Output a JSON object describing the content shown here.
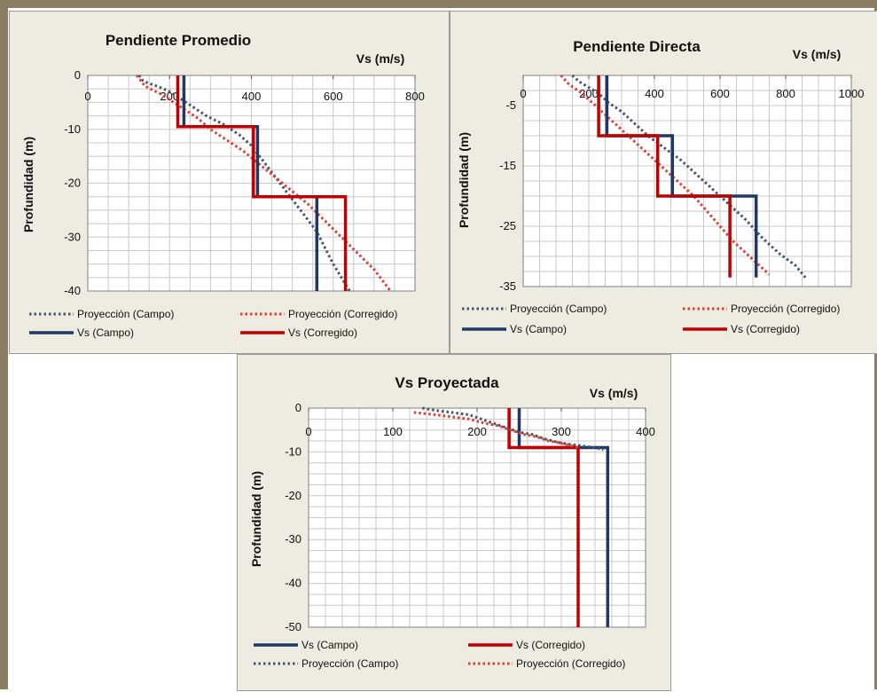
{
  "chart_data": [
    {
      "type": "line",
      "title": "Pendiente Promedio",
      "xlabel": "Vs (m/s)",
      "ylabel": "Profundidad (m)",
      "xlim": [
        0,
        800
      ],
      "ylim": [
        -40,
        0
      ],
      "xticks": [
        0,
        200,
        400,
        600,
        800
      ],
      "yticks": [
        0,
        -10,
        -20,
        -30,
        -40
      ],
      "grid": true,
      "legend": "bottom",
      "series": [
        {
          "name": "Proyección (Campo)",
          "style": "dotted",
          "color": "#44546a",
          "x": [
            125,
            135,
            150,
            170,
            200,
            220,
            240,
            260,
            290,
            330,
            370,
            400,
            420,
            440,
            460,
            480,
            500,
            520,
            540,
            560,
            580,
            600,
            620,
            640
          ],
          "y": [
            0,
            -1,
            -1.5,
            -2,
            -3,
            -4,
            -5,
            -6,
            -7.5,
            -9,
            -11,
            -13,
            -15,
            -17,
            -19,
            -21,
            -23,
            -25,
            -27,
            -29,
            -32,
            -35,
            -37.5,
            -40
          ]
        },
        {
          "name": "Proyección (Corregido)",
          "style": "dotted",
          "color": "#e03c31",
          "x": [
            120,
            140,
            180,
            210,
            240,
            270,
            300,
            340,
            380,
            420,
            460,
            500,
            540,
            580,
            620,
            660,
            700,
            740
          ],
          "y": [
            0,
            -2,
            -3.5,
            -5,
            -6.5,
            -8,
            -10,
            -12,
            -14,
            -16.5,
            -19,
            -21.5,
            -24,
            -27,
            -30,
            -33,
            -36,
            -40
          ]
        },
        {
          "name": "Vs (Campo)",
          "style": "solid",
          "color": "#1f3864",
          "x": [
            235,
            235,
            415,
            415,
            560,
            560
          ],
          "y": [
            0,
            -9.5,
            -9.5,
            -22.5,
            -22.5,
            -40
          ]
        },
        {
          "name": "Vs (Corregido)",
          "style": "solid",
          "color": "#c00000",
          "x": [
            220,
            220,
            405,
            405,
            630,
            630
          ],
          "y": [
            0,
            -9.5,
            -9.5,
            -22.5,
            -22.5,
            -40
          ]
        }
      ]
    },
    {
      "type": "line",
      "title": "Pendiente Directa",
      "xlabel": "Vs (m/s)",
      "ylabel": "Profundidad (m)",
      "xlim": [
        0,
        1000
      ],
      "ylim": [
        -35,
        0
      ],
      "xticks": [
        0,
        200,
        400,
        600,
        800,
        1000
      ],
      "yticks": [
        -5,
        -15,
        -25,
        -35
      ],
      "grid": true,
      "legend": "bottom",
      "series": [
        {
          "name": "Proyección (Campo)",
          "style": "dotted",
          "color": "#44546a",
          "x": [
            150,
            170,
            200,
            230,
            260,
            300,
            340,
            380,
            430,
            480,
            530,
            580,
            630,
            680,
            730,
            780,
            830,
            860
          ],
          "y": [
            0,
            -1,
            -2,
            -3,
            -4.5,
            -6,
            -8,
            -10,
            -12,
            -14,
            -16.5,
            -19,
            -21.5,
            -24,
            -27,
            -29.5,
            -31.5,
            -33.5
          ]
        },
        {
          "name": "Proyección (Corregido)",
          "style": "dotted",
          "color": "#e03c31",
          "x": [
            115,
            140,
            180,
            210,
            240,
            280,
            320,
            360,
            400,
            440,
            480,
            520,
            560,
            600,
            640,
            680,
            720,
            750
          ],
          "y": [
            0,
            -1.5,
            -3,
            -4.5,
            -6,
            -8,
            -10,
            -12,
            -14,
            -16,
            -18,
            -20,
            -22.5,
            -25,
            -27.5,
            -29.5,
            -31.5,
            -33
          ]
        },
        {
          "name": "Vs (Campo)",
          "style": "solid",
          "color": "#1f3864",
          "x": [
            255,
            255,
            455,
            455,
            710,
            710
          ],
          "y": [
            0,
            -10,
            -10,
            -20,
            -20,
            -33.5
          ]
        },
        {
          "name": "Vs (Corregido)",
          "style": "solid",
          "color": "#c00000",
          "x": [
            230,
            230,
            410,
            410,
            630,
            630
          ],
          "y": [
            0,
            -10,
            -10,
            -20,
            -20,
            -33.5
          ]
        }
      ]
    },
    {
      "type": "line",
      "title": "Vs Proyectada",
      "xlabel": "Vs (m/s)",
      "ylabel": "Profundidad (m)",
      "xlim": [
        0,
        400
      ],
      "ylim": [
        -50,
        0
      ],
      "xticks": [
        0,
        100,
        200,
        300,
        400
      ],
      "yticks": [
        0,
        -10,
        -20,
        -30,
        -40,
        -50
      ],
      "grid": true,
      "legend": "bottom",
      "series": [
        {
          "name": "Vs (Campo)",
          "style": "solid",
          "color": "#1f3864",
          "x": [
            250,
            250,
            355,
            355
          ],
          "y": [
            0,
            -9,
            -9,
            -50
          ]
        },
        {
          "name": "Vs (Corregido)",
          "style": "solid",
          "color": "#c00000",
          "x": [
            238,
            238,
            320,
            320
          ],
          "y": [
            0,
            -9,
            -9,
            -50
          ]
        },
        {
          "name": "Proyección (Campo)",
          "style": "dotted",
          "color": "#44546a",
          "x": [
            135,
            150,
            170,
            190,
            205,
            220,
            235,
            250,
            265,
            280,
            300,
            320,
            340,
            350
          ],
          "y": [
            0,
            -0.5,
            -1,
            -1.5,
            -2.5,
            -3.5,
            -4.5,
            -5.5,
            -6,
            -7,
            -8,
            -8.5,
            -9,
            -9.5
          ]
        },
        {
          "name": "Proyección (Corregido)",
          "style": "dotted",
          "color": "#e03c31",
          "x": [
            125,
            150,
            170,
            190,
            210,
            225,
            240,
            255,
            270,
            285,
            300,
            320
          ],
          "y": [
            -1,
            -1.5,
            -2,
            -2.5,
            -3.5,
            -4,
            -5,
            -6,
            -6.5,
            -7.5,
            -8,
            -9
          ]
        }
      ]
    }
  ]
}
